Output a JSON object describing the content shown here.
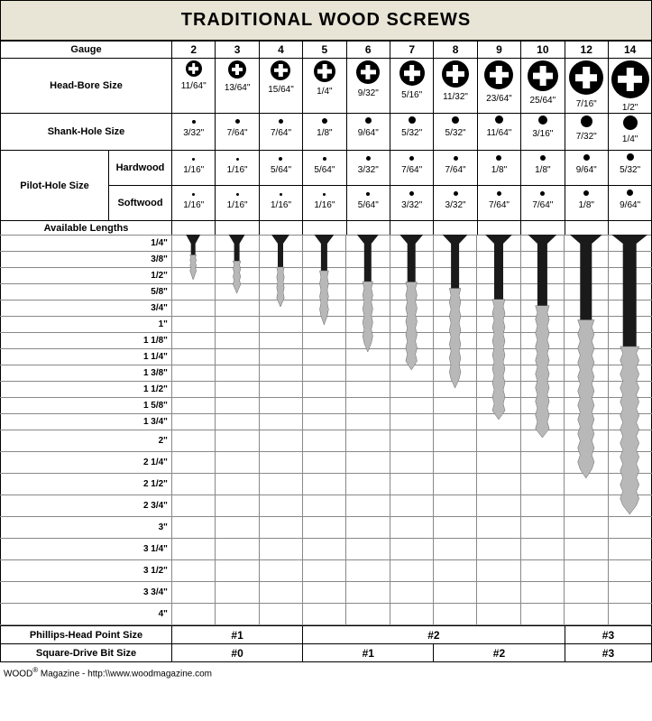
{
  "title": "TRADITIONAL WOOD SCREWS",
  "labels": {
    "gauge": "Gauge",
    "headBore": "Head-Bore Size",
    "shankHole": "Shank-Hole Size",
    "pilotHole": "Pilot-Hole Size",
    "hardwood": "Hardwood",
    "softwood": "Softwood",
    "availLengths": "Available Lengths",
    "phillips": "Phillips-Head Point Size",
    "square": "Square-Drive Bit Size"
  },
  "gauges": [
    "2",
    "3",
    "4",
    "5",
    "6",
    "7",
    "8",
    "9",
    "10",
    "12",
    "14"
  ],
  "headBore": {
    "iconDiam": [
      18,
      20,
      22,
      24,
      26,
      28,
      30,
      32,
      34,
      38,
      42
    ],
    "labels": [
      "11/64\"",
      "13/64\"",
      "15/64\"",
      "1/4\"",
      "9/32\"",
      "5/16\"",
      "11/32\"",
      "23/64\"",
      "25/64\"",
      "7/16\"",
      "1/2\""
    ]
  },
  "shankHole": {
    "dotDiam": [
      4,
      5,
      5,
      6,
      7,
      8,
      8,
      9,
      10,
      13,
      16
    ],
    "labels": [
      "3/32\"",
      "7/64\"",
      "7/64\"",
      "1/8\"",
      "9/64\"",
      "5/32\"",
      "5/32\"",
      "11/64\"",
      "3/16\"",
      "7/32\"",
      "1/4\""
    ]
  },
  "pilotHardwood": {
    "dotDiam": [
      3,
      3,
      4,
      4,
      5,
      5,
      5,
      6,
      6,
      7,
      8
    ],
    "labels": [
      "1/16\"",
      "1/16\"",
      "5/64\"",
      "5/64\"",
      "3/32\"",
      "7/64\"",
      "7/64\"",
      "1/8\"",
      "1/8\"",
      "9/64\"",
      "5/32\""
    ]
  },
  "pilotSoftwood": {
    "dotDiam": [
      3,
      3,
      3,
      3,
      4,
      5,
      5,
      5,
      5,
      6,
      7
    ],
    "labels": [
      "1/16\"",
      "1/16\"",
      "1/16\"",
      "1/16\"",
      "5/64\"",
      "3/32\"",
      "3/32\"",
      "7/64\"",
      "7/64\"",
      "1/8\"",
      "9/64\""
    ]
  },
  "lengthLabels": [
    "1/4\"",
    "3/8\"",
    "1/2\"",
    "5/8\"",
    "3/4\"",
    "1\"",
    "1 1/8\"",
    "1 1/4\"",
    "1 3/8\"",
    "1 1/2\"",
    "1 5/8\"",
    "1 3/4\"",
    "2\"",
    "2 1/4\"",
    "2 1/2\"",
    "2 3/4\"",
    "3\"",
    "3 1/4\"",
    "3 1/2\"",
    "3 3/4\"",
    "4\""
  ],
  "lengthTallFromIndex": 12,
  "screws": {
    "headW": [
      16,
      18,
      20,
      22,
      24,
      26,
      28,
      30,
      32,
      36,
      40
    ],
    "shankW": [
      5,
      6,
      6,
      7,
      8,
      9,
      9,
      10,
      11,
      13,
      15
    ],
    "blackLenFrac": [
      0.45,
      0.45,
      0.45,
      0.4,
      0.4,
      0.35,
      0.35,
      0.35,
      0.35,
      0.35,
      0.4
    ],
    "totalLen": [
      50,
      65,
      80,
      100,
      130,
      150,
      170,
      205,
      225,
      270,
      310
    ],
    "colors": {
      "dark": "#1a1a1a",
      "light": "#b8b8b8"
    }
  },
  "phillipsSpans": [
    {
      "label": "#1",
      "span": 3
    },
    {
      "label": "#2",
      "span": 6
    },
    {
      "label": "#3",
      "span": 2
    }
  ],
  "squareSpans": [
    {
      "label": "#0",
      "span": 3
    },
    {
      "label": "#1",
      "span": 3
    },
    {
      "label": "#2",
      "span": 3
    },
    {
      "label": "#3",
      "span": 2
    }
  ],
  "footer": {
    "brand": "WOOD",
    "rest": " Magazine - http:\\\\www.woodmagazine.com"
  },
  "layout": {
    "labelColW": 120,
    "subLabelColW": 70,
    "dataColW": 48.4,
    "lengthLabelColW": 190,
    "lengthAreaRowH_short": 18,
    "lengthAreaRowH_tall": 24
  }
}
